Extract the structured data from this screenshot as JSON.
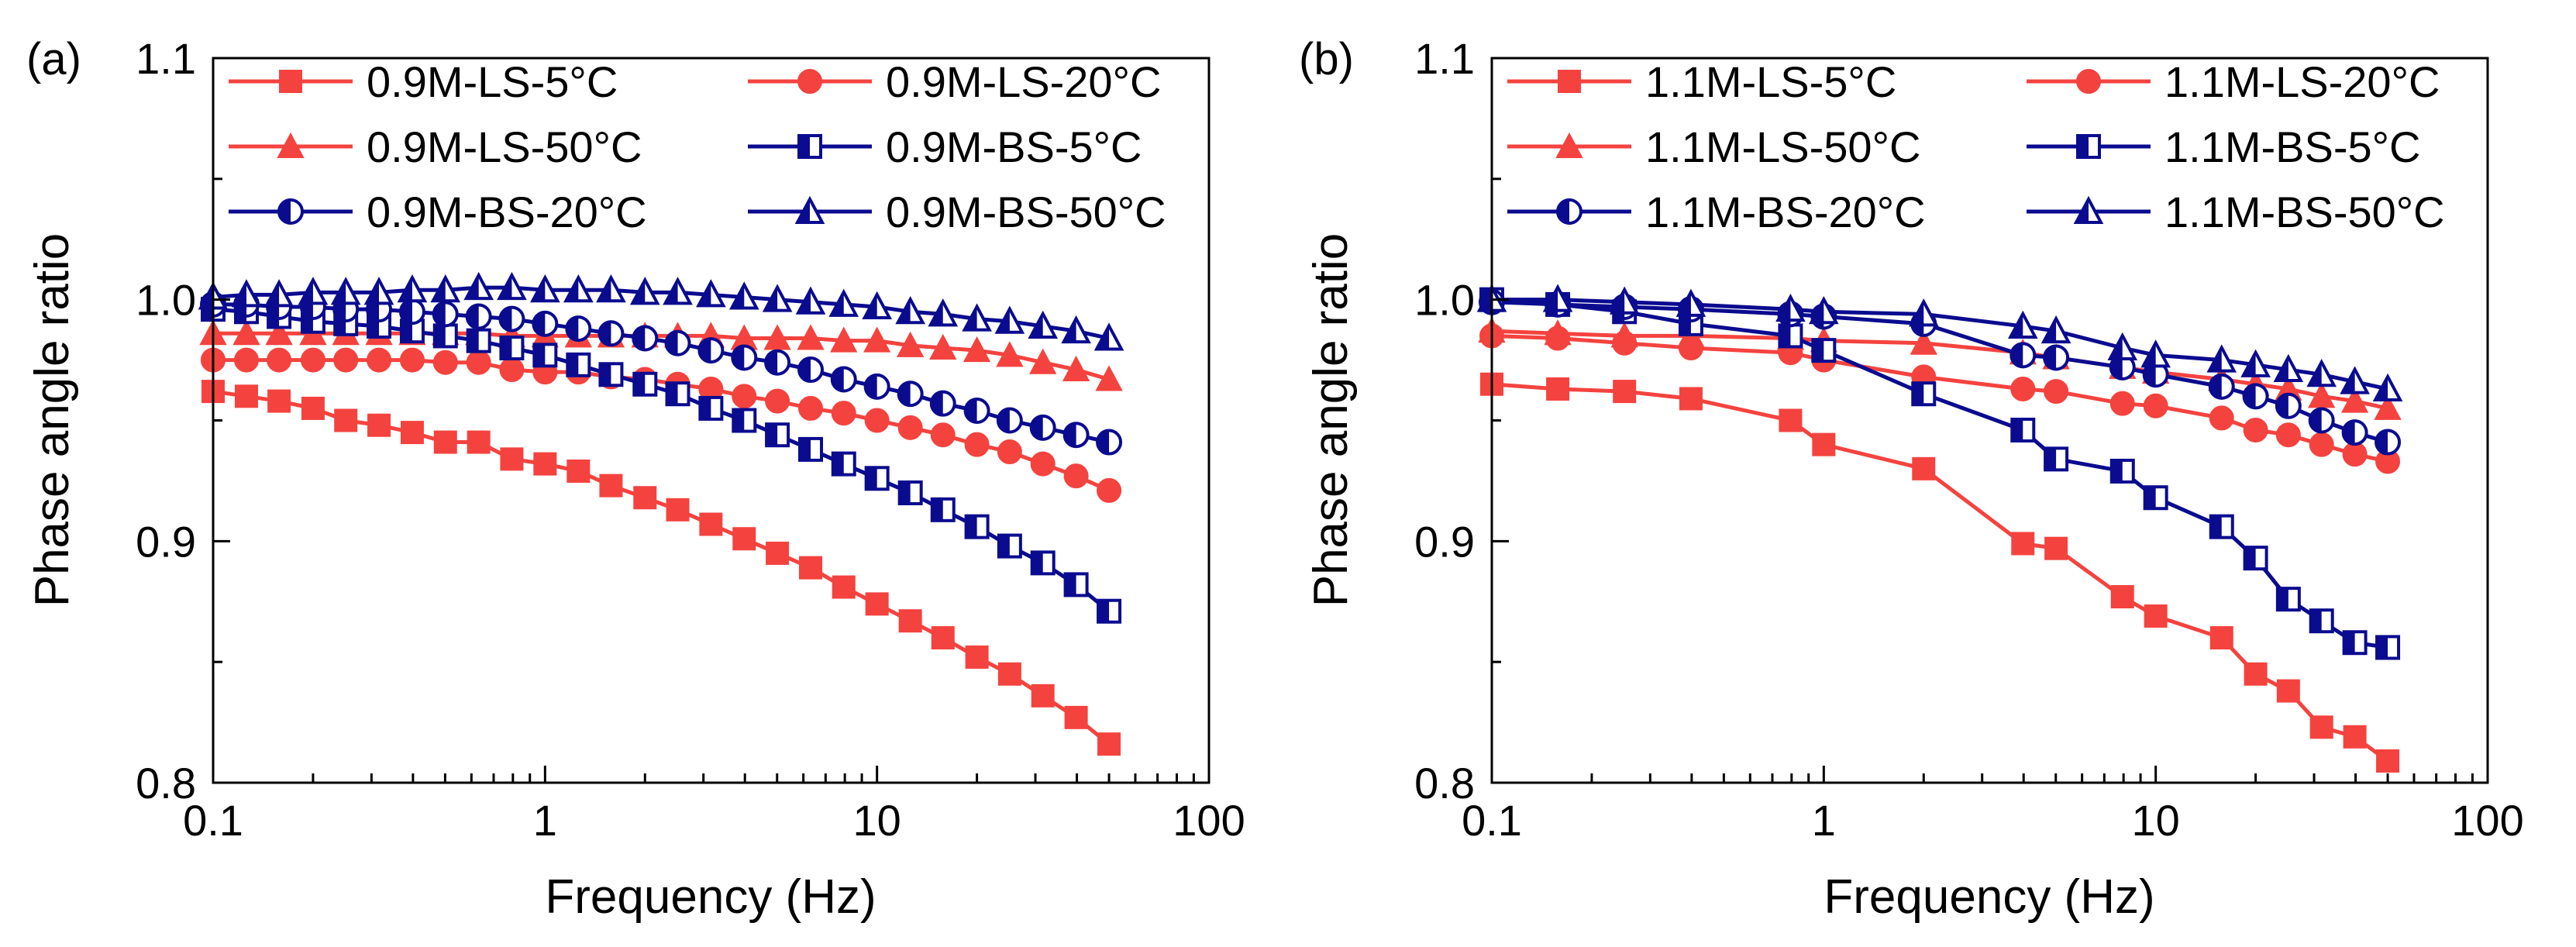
{
  "figure": {
    "background": "#ffffff",
    "colors": {
      "red": "#f4433f",
      "blue": "#0b0b8f"
    }
  },
  "chart_data": [
    {
      "type": "line",
      "panel_label": "(a)",
      "xlabel": "Frequency (Hz)",
      "ylabel": "Phase angle ratio",
      "xscale": "log",
      "xlim": [
        0.1,
        100
      ],
      "ylim": [
        0.8,
        1.1
      ],
      "xticks": [
        0.1,
        1,
        10,
        100
      ],
      "xtick_labels": [
        "0.1",
        "1",
        "10",
        "100"
      ],
      "yticks": [
        0.8,
        0.9,
        1.0,
        1.1
      ],
      "ytick_labels": [
        "0.8",
        "0.9",
        "1.0",
        "1.1"
      ],
      "legend_position": "top, 2 columns",
      "series": [
        {
          "name": "0.9M-LS-5°C",
          "color": "#f4433f",
          "marker": "square-filled",
          "x": [
            0.1,
            0.126,
            0.158,
            0.2,
            0.251,
            0.316,
            0.398,
            0.501,
            0.631,
            0.794,
            1,
            1.26,
            1.58,
            2,
            2.51,
            3.16,
            3.98,
            5.01,
            6.31,
            7.94,
            10,
            12.6,
            15.8,
            20,
            25.1,
            31.6,
            39.8,
            50
          ],
          "y": [
            0.962,
            0.96,
            0.958,
            0.955,
            0.95,
            0.948,
            0.945,
            0.941,
            0.941,
            0.934,
            0.932,
            0.929,
            0.923,
            0.918,
            0.913,
            0.907,
            0.901,
            0.895,
            0.889,
            0.881,
            0.874,
            0.867,
            0.86,
            0.852,
            0.845,
            0.836,
            0.827,
            0.816
          ]
        },
        {
          "name": "0.9M-LS-20°C",
          "color": "#f4433f",
          "marker": "circle-filled",
          "x": [
            0.1,
            0.126,
            0.158,
            0.2,
            0.251,
            0.316,
            0.398,
            0.501,
            0.631,
            0.794,
            1,
            1.26,
            1.58,
            2,
            2.51,
            3.16,
            3.98,
            5.01,
            6.31,
            7.94,
            10,
            12.6,
            15.8,
            20,
            25.1,
            31.6,
            39.8,
            50
          ],
          "y": [
            0.975,
            0.975,
            0.975,
            0.975,
            0.975,
            0.975,
            0.975,
            0.974,
            0.974,
            0.971,
            0.97,
            0.97,
            0.968,
            0.967,
            0.965,
            0.963,
            0.96,
            0.958,
            0.955,
            0.953,
            0.95,
            0.947,
            0.944,
            0.94,
            0.937,
            0.932,
            0.927,
            0.921
          ]
        },
        {
          "name": "0.9M-LS-50°C",
          "color": "#f4433f",
          "marker": "triangle-filled",
          "x": [
            0.1,
            0.126,
            0.158,
            0.2,
            0.251,
            0.316,
            0.398,
            0.501,
            0.631,
            0.794,
            1,
            1.26,
            1.58,
            2,
            2.51,
            3.16,
            3.98,
            5.01,
            6.31,
            7.94,
            10,
            12.6,
            15.8,
            20,
            25.1,
            31.6,
            39.8,
            50
          ],
          "y": [
            0.986,
            0.986,
            0.986,
            0.986,
            0.986,
            0.986,
            0.986,
            0.986,
            0.986,
            0.985,
            0.985,
            0.985,
            0.985,
            0.985,
            0.985,
            0.985,
            0.984,
            0.984,
            0.984,
            0.983,
            0.983,
            0.981,
            0.98,
            0.979,
            0.977,
            0.974,
            0.971,
            0.967
          ]
        },
        {
          "name": "0.9M-BS-5°C",
          "color": "#0b0b8f",
          "marker": "square-half",
          "x": [
            0.1,
            0.126,
            0.158,
            0.2,
            0.251,
            0.316,
            0.398,
            0.501,
            0.631,
            0.794,
            1,
            1.26,
            1.58,
            2,
            2.51,
            3.16,
            3.98,
            5.01,
            6.31,
            7.94,
            10,
            12.6,
            15.8,
            20,
            25.1,
            31.6,
            39.8,
            50
          ],
          "y": [
            0.996,
            0.995,
            0.993,
            0.991,
            0.99,
            0.989,
            0.987,
            0.985,
            0.983,
            0.98,
            0.977,
            0.973,
            0.969,
            0.965,
            0.961,
            0.955,
            0.95,
            0.944,
            0.938,
            0.932,
            0.926,
            0.92,
            0.913,
            0.906,
            0.898,
            0.891,
            0.882,
            0.871
          ]
        },
        {
          "name": "0.9M-BS-20°C",
          "color": "#0b0b8f",
          "marker": "circle-half",
          "x": [
            0.1,
            0.126,
            0.158,
            0.2,
            0.251,
            0.316,
            0.398,
            0.501,
            0.631,
            0.794,
            1,
            1.26,
            1.58,
            2,
            2.51,
            3.16,
            3.98,
            5.01,
            6.31,
            7.94,
            10,
            12.6,
            15.8,
            20,
            25.1,
            31.6,
            39.8,
            50
          ],
          "y": [
            0.998,
            0.998,
            0.997,
            0.997,
            0.996,
            0.996,
            0.995,
            0.994,
            0.993,
            0.992,
            0.99,
            0.988,
            0.986,
            0.984,
            0.982,
            0.979,
            0.976,
            0.974,
            0.971,
            0.967,
            0.964,
            0.961,
            0.957,
            0.954,
            0.95,
            0.947,
            0.944,
            0.941
          ]
        },
        {
          "name": "0.9M-BS-50°C",
          "color": "#0b0b8f",
          "marker": "triangle-half",
          "x": [
            0.1,
            0.126,
            0.158,
            0.2,
            0.251,
            0.316,
            0.398,
            0.501,
            0.631,
            0.794,
            1,
            1.26,
            1.58,
            2,
            2.51,
            3.16,
            3.98,
            5.01,
            6.31,
            7.94,
            10,
            12.6,
            15.8,
            20,
            25.1,
            31.6,
            39.8,
            50
          ],
          "y": [
            1.001,
            1.002,
            1.002,
            1.003,
            1.003,
            1.003,
            1.004,
            1.004,
            1.005,
            1.005,
            1.004,
            1.004,
            1.004,
            1.003,
            1.003,
            1.002,
            1.001,
            1.0,
            0.999,
            0.998,
            0.997,
            0.995,
            0.994,
            0.992,
            0.991,
            0.989,
            0.987,
            0.984
          ]
        }
      ],
      "legend_entries": [
        "0.9M-LS-5°C",
        "0.9M-LS-20°C",
        "0.9M-LS-50°C",
        "0.9M-BS-5°C",
        "0.9M-BS-20°C",
        "0.9M-BS-50°C"
      ]
    },
    {
      "type": "line",
      "panel_label": "(b)",
      "xlabel": "Frequency (Hz)",
      "ylabel": "Phase angle ratio",
      "xscale": "log",
      "xlim": [
        0.1,
        100
      ],
      "ylim": [
        0.8,
        1.1
      ],
      "xticks": [
        0.1,
        1,
        10,
        100
      ],
      "xtick_labels": [
        "0.1",
        "1",
        "10",
        "100"
      ],
      "yticks": [
        0.8,
        0.9,
        1.0,
        1.1
      ],
      "ytick_labels": [
        "0.8",
        "0.9",
        "1.0",
        "1.1"
      ],
      "legend_position": "top, 2 columns",
      "series": [
        {
          "name": "1.1M-LS-5°C",
          "color": "#f4433f",
          "marker": "square-filled",
          "x": [
            0.1,
            0.158,
            0.251,
            0.398,
            0.794,
            1,
            2,
            3.98,
            5.01,
            7.94,
            10,
            15.8,
            20,
            25.1,
            31.6,
            39.8,
            50
          ],
          "y": [
            0.965,
            0.963,
            0.962,
            0.959,
            0.95,
            0.94,
            0.93,
            0.899,
            0.897,
            0.877,
            0.869,
            0.86,
            0.845,
            0.838,
            0.823,
            0.819,
            0.809
          ]
        },
        {
          "name": "1.1M-LS-20°C",
          "color": "#f4433f",
          "marker": "circle-filled",
          "x": [
            0.1,
            0.158,
            0.251,
            0.398,
            0.794,
            1,
            2,
            3.98,
            5.01,
            7.94,
            10,
            15.8,
            20,
            25.1,
            31.6,
            39.8,
            50
          ],
          "y": [
            0.985,
            0.984,
            0.982,
            0.98,
            0.978,
            0.975,
            0.968,
            0.963,
            0.962,
            0.957,
            0.956,
            0.951,
            0.946,
            0.944,
            0.94,
            0.936,
            0.933
          ]
        },
        {
          "name": "1.1M-LS-50°C",
          "color": "#f4433f",
          "marker": "triangle-filled",
          "x": [
            0.1,
            0.158,
            0.251,
            0.398,
            0.794,
            1,
            2,
            3.98,
            5.01,
            7.94,
            10,
            15.8,
            20,
            25.1,
            31.6,
            39.8,
            50
          ],
          "y": [
            0.987,
            0.986,
            0.985,
            0.985,
            0.984,
            0.983,
            0.982,
            0.978,
            0.976,
            0.972,
            0.97,
            0.967,
            0.965,
            0.963,
            0.96,
            0.958,
            0.955
          ]
        },
        {
          "name": "1.1M-BS-5°C",
          "color": "#0b0b8f",
          "marker": "square-half",
          "x": [
            0.1,
            0.158,
            0.251,
            0.398,
            0.794,
            1,
            2,
            3.98,
            5.01,
            7.94,
            10,
            15.8,
            20,
            25.1,
            31.6,
            39.8,
            50
          ],
          "y": [
            1.0,
            0.998,
            0.995,
            0.99,
            0.985,
            0.979,
            0.961,
            0.946,
            0.934,
            0.929,
            0.918,
            0.906,
            0.893,
            0.876,
            0.867,
            0.858,
            0.856
          ]
        },
        {
          "name": "1.1M-BS-20°C",
          "color": "#0b0b8f",
          "marker": "circle-half",
          "x": [
            0.1,
            0.158,
            0.251,
            0.398,
            0.794,
            1,
            2,
            3.98,
            5.01,
            7.94,
            10,
            15.8,
            20,
            25.1,
            31.6,
            39.8,
            50
          ],
          "y": [
            0.999,
            0.998,
            0.997,
            0.996,
            0.994,
            0.993,
            0.99,
            0.977,
            0.976,
            0.972,
            0.969,
            0.964,
            0.96,
            0.956,
            0.95,
            0.945,
            0.941
          ]
        },
        {
          "name": "1.1M-BS-50°C",
          "color": "#0b0b8f",
          "marker": "triangle-half",
          "x": [
            0.1,
            0.158,
            0.251,
            0.398,
            0.794,
            1,
            2,
            3.98,
            5.01,
            7.94,
            10,
            15.8,
            20,
            25.1,
            31.6,
            39.8,
            50
          ],
          "y": [
            1.0,
            1.0,
            0.999,
            0.998,
            0.996,
            0.995,
            0.994,
            0.989,
            0.987,
            0.98,
            0.977,
            0.975,
            0.973,
            0.971,
            0.969,
            0.966,
            0.963
          ]
        }
      ],
      "legend_entries": [
        "1.1M-LS-5°C",
        "1.1M-LS-20°C",
        "1.1M-LS-50°C",
        "1.1M-BS-5°C",
        "1.1M-BS-20°C",
        "1.1M-BS-50°C"
      ]
    }
  ]
}
